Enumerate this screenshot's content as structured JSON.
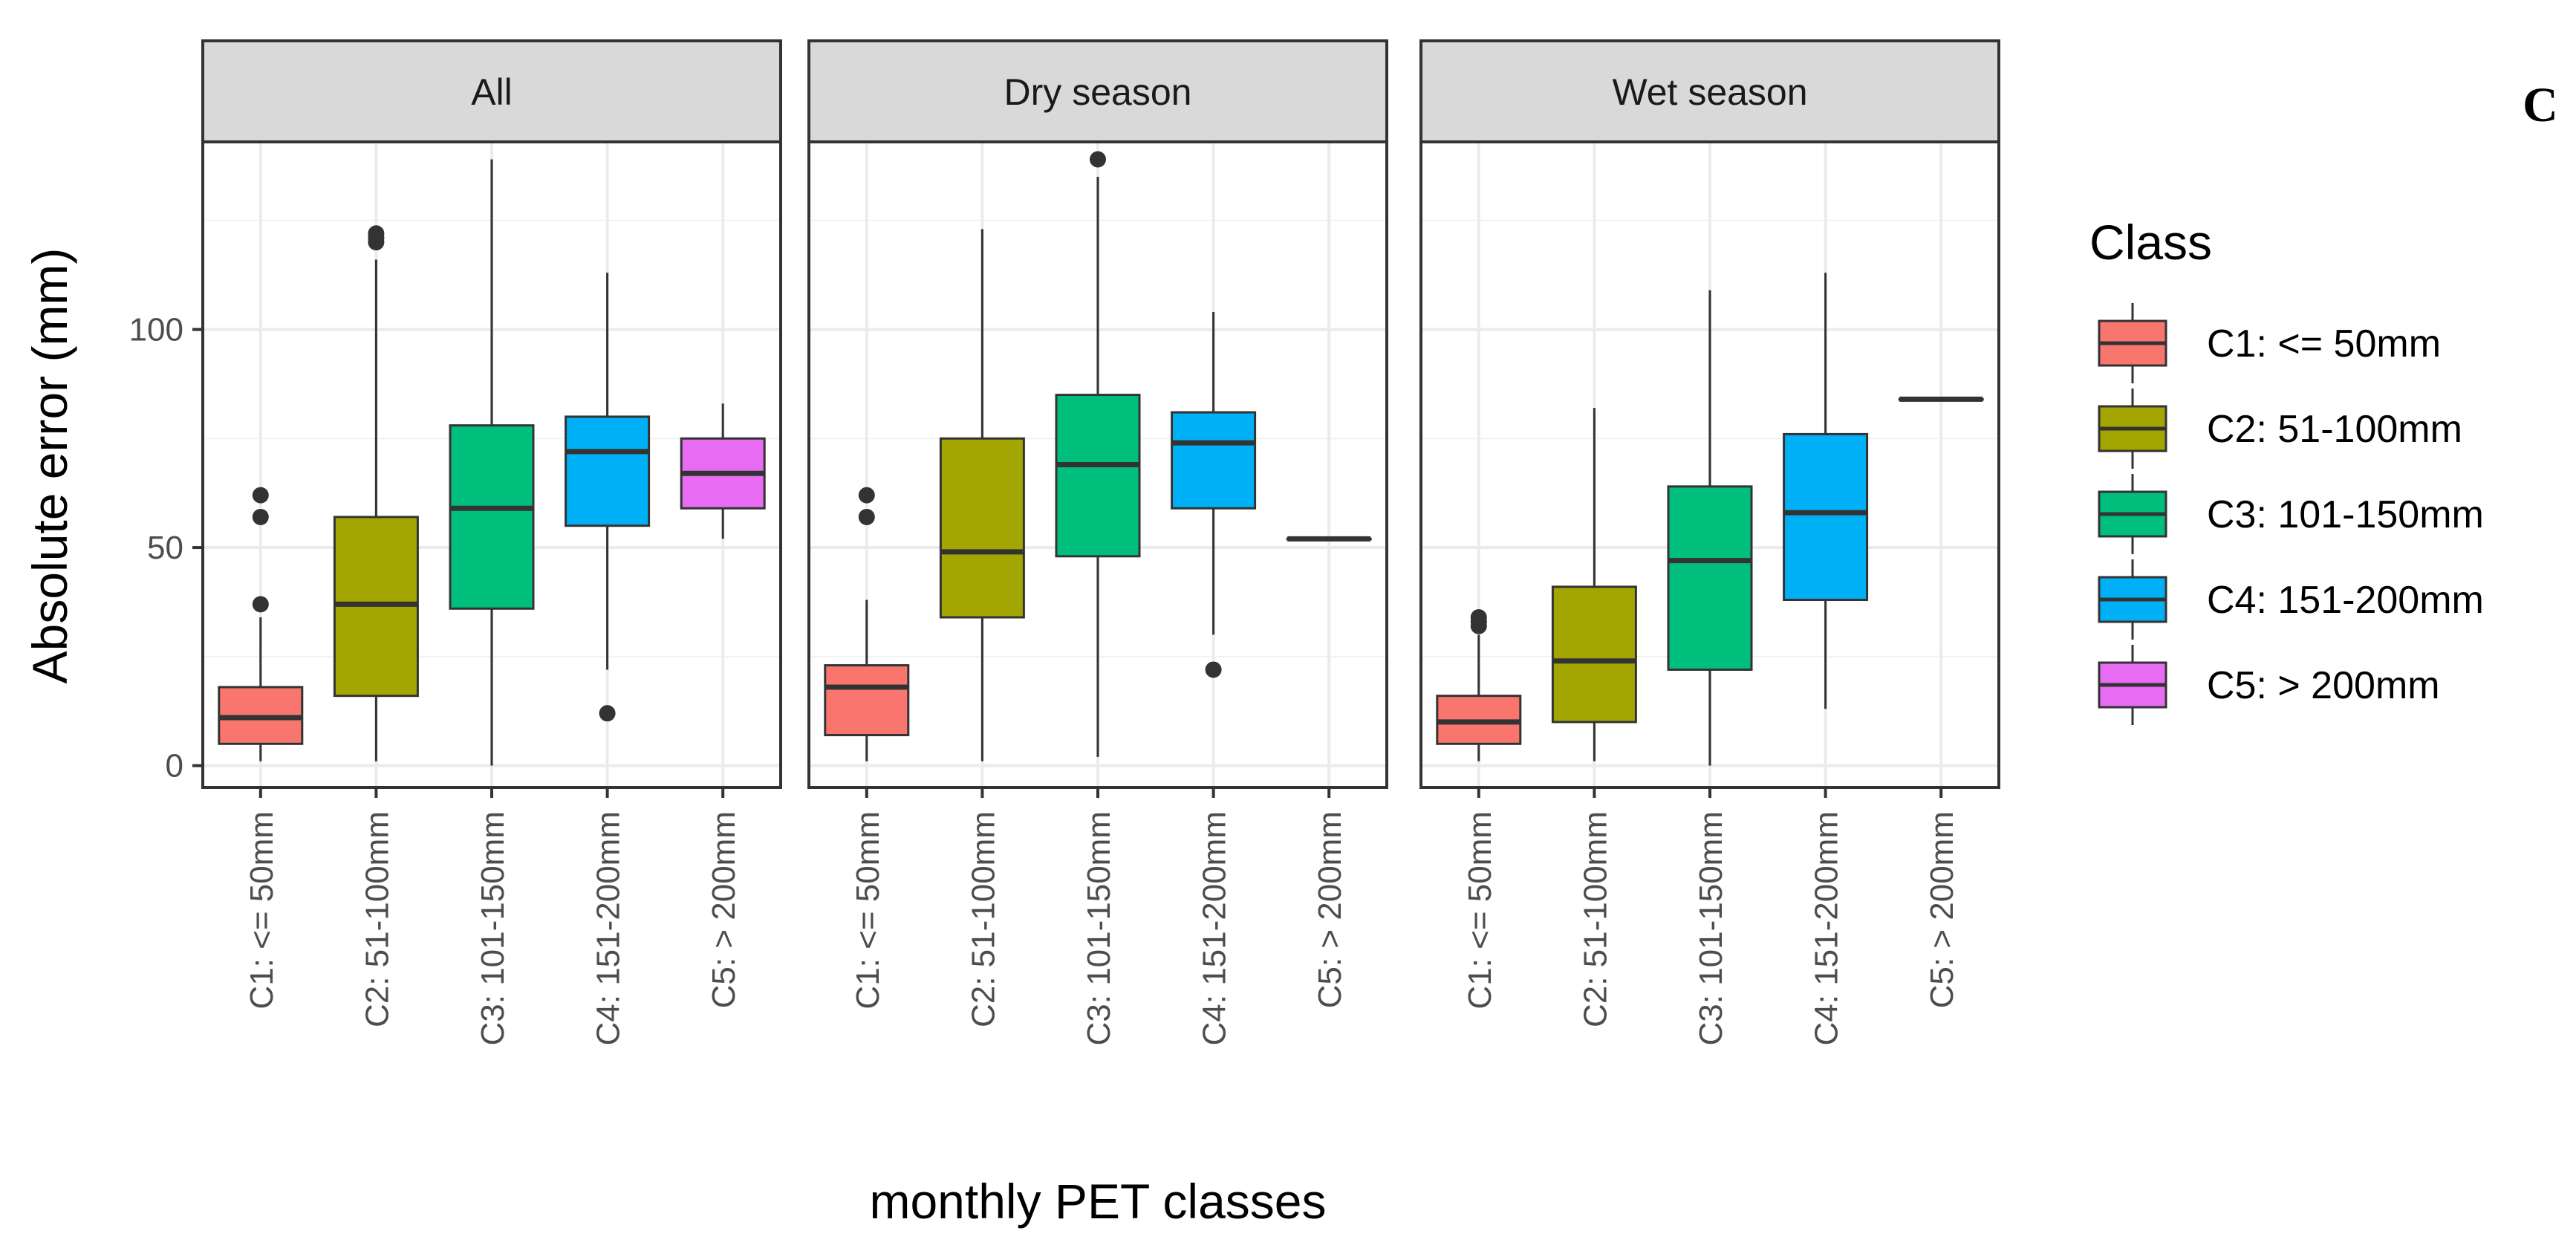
{
  "chart_data": {
    "type": "boxplot",
    "xlabel": "monthly PET classes",
    "ylabel": "Absolute error (mm)",
    "ylim": [
      -5,
      143
    ],
    "yticks": [
      0,
      50,
      100
    ],
    "panel_letter": "C",
    "categories": [
      "C1: <= 50mm",
      "C2: 51-100mm",
      "C3: 101-150mm",
      "C4: 151-200mm",
      "C5: > 200mm"
    ],
    "legend": {
      "title": "Class",
      "items": [
        {
          "label": "C1: <= 50mm",
          "color": "#F8766D"
        },
        {
          "label": "C2: 51-100mm",
          "color": "#A3A500"
        },
        {
          "label": "C3: 101-150mm",
          "color": "#00BF7D"
        },
        {
          "label": "C4: 151-200mm",
          "color": "#00B0F6"
        },
        {
          "label": "C5: > 200mm",
          "color": "#E76BF3"
        }
      ]
    },
    "panels": [
      {
        "title": "All",
        "boxes": [
          {
            "class": "C1",
            "min": 1,
            "q1": 5,
            "median": 11,
            "q3": 18,
            "max": 34,
            "outliers": [
              37,
              57,
              62
            ]
          },
          {
            "class": "C2",
            "min": 1,
            "q1": 16,
            "median": 37,
            "q3": 57,
            "max": 116,
            "outliers": [
              120,
              121,
              122
            ]
          },
          {
            "class": "C3",
            "min": 0,
            "q1": 36,
            "median": 59,
            "q3": 78,
            "max": 139,
            "outliers": []
          },
          {
            "class": "C4",
            "min": 22,
            "q1": 55,
            "median": 72,
            "q3": 80,
            "max": 113,
            "outliers": [
              12
            ]
          },
          {
            "class": "C5",
            "min": 52,
            "q1": 59,
            "median": 67,
            "q3": 75,
            "max": 83,
            "outliers": []
          }
        ]
      },
      {
        "title": "Dry season",
        "boxes": [
          {
            "class": "C1",
            "min": 1,
            "q1": 7,
            "median": 18,
            "q3": 23,
            "max": 38,
            "outliers": [
              57,
              62
            ]
          },
          {
            "class": "C2",
            "min": 1,
            "q1": 34,
            "median": 49,
            "q3": 75,
            "max": 123,
            "outliers": []
          },
          {
            "class": "C3",
            "min": 2,
            "q1": 48,
            "median": 69,
            "q3": 85,
            "max": 135,
            "outliers": [
              139
            ]
          },
          {
            "class": "C4",
            "min": 30,
            "q1": 59,
            "median": 74,
            "q3": 81,
            "max": 104,
            "outliers": [
              22
            ]
          },
          {
            "class": "C5",
            "min": 52,
            "q1": 52,
            "median": 52,
            "q3": 52,
            "max": 52,
            "outliers": []
          }
        ]
      },
      {
        "title": "Wet season",
        "boxes": [
          {
            "class": "C1",
            "min": 1,
            "q1": 5,
            "median": 10,
            "q3": 16,
            "max": 30,
            "outliers": [
              32,
              33,
              34
            ]
          },
          {
            "class": "C2",
            "min": 1,
            "q1": 10,
            "median": 24,
            "q3": 41,
            "max": 82,
            "outliers": []
          },
          {
            "class": "C3",
            "min": 0,
            "q1": 22,
            "median": 47,
            "q3": 64,
            "max": 109,
            "outliers": []
          },
          {
            "class": "C4",
            "min": 13,
            "q1": 38,
            "median": 58,
            "q3": 76,
            "max": 113,
            "outliers": []
          },
          {
            "class": "C5",
            "min": 84,
            "q1": 84,
            "median": 84,
            "q3": 84,
            "max": 84,
            "outliers": []
          }
        ]
      }
    ]
  }
}
